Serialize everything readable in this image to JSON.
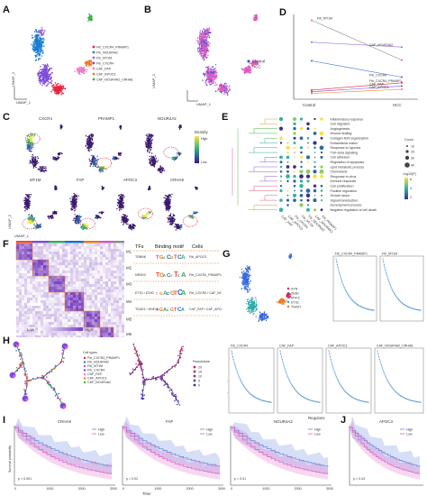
{
  "panels": {
    "A": "A",
    "B": "B",
    "C": "C",
    "D": "D",
    "E": "E",
    "F": "F",
    "G": "G",
    "H": "H",
    "I": "I",
    "J": "J"
  },
  "panelA": {
    "legend": [
      "Fib_CXCR4_PRAMP1",
      "Fib_NOUR4A2",
      "Fib_MT1M",
      "Fib_CXCR4",
      "CAF_FAP",
      "CAF_APOC3",
      "CAF_NOUR4A2_CRHA8"
    ],
    "colors": [
      "#e8203a",
      "#1a7fd1",
      "#a06bd3",
      "#7d4bd8",
      "#f07dc6",
      "#f47b20",
      "#3bb34a"
    ],
    "xaxis": "UMAP_1",
    "yaxis": "UMAP_2"
  },
  "panelB": {
    "legend": [
      "Control",
      "HCC"
    ],
    "colors": [
      "#3a5bd9",
      "#e05cc2"
    ],
    "xaxis": "UMAP_1",
    "yaxis": "UMAP_2"
  },
  "panelC": {
    "genes_top": [
      "CXCR4",
      "PRAMP1",
      "NOUR4A2"
    ],
    "genes_bottom": [
      "MT1M",
      "FAP",
      "APOC3",
      "CRHA8"
    ],
    "density_title": "Density",
    "density_high": "High",
    "density_low": "Low",
    "xaxis": "UMAP_1",
    "yaxis": "UMAP_2"
  },
  "panelD": {
    "x_labels": [
      "Control",
      "HCC"
    ],
    "lines": [
      {
        "label": "Fib_MT1M",
        "y0": 0.95,
        "y1": 0.46
      },
      {
        "label": "CAF_NOUR4A2",
        "y0": 0.68,
        "y1": 0.62
      },
      {
        "label": "Fib_CXCR4",
        "y0": 0.45,
        "y1": 0.25
      },
      {
        "label": "Fib_CXCR4_PRAMP1",
        "y0": 0.09,
        "y1": 0.18
      },
      {
        "label": "CAF_FAP",
        "y0": 0.07,
        "y1": 0.14
      },
      {
        "label": "CAF_APOC3",
        "y0": 0.05,
        "y1": 0.1
      }
    ]
  },
  "panelE": {
    "terms": [
      "Inflammatory response",
      "Cell migration",
      "Angiogenesis",
      "Wound healing",
      "Collagen fibril organization",
      "Extracellular matrix",
      "Response to hypoxia",
      "TGF-beta signaling",
      "Cell adhesion",
      "Regulation of apoptosis",
      "Lipid metabolic process",
      "Chemotaxis",
      "Response to virus",
      "Immune response",
      "Cell proliferation",
      "Positive regulation",
      "Growth factor",
      "Signal transduction",
      "Development process",
      "Negative regulation of cell death"
    ],
    "term_colors": [
      "#e7962a",
      "#e7962a",
      "#3fb34f",
      "#3fb34f",
      "#3fb34f",
      "#2aa7a7",
      "#2aa7a7",
      "#2aa7a7",
      "#8a5bd4",
      "#8a5bd4",
      "#8a5bd4",
      "#8a5bd4",
      "#8a5bd4",
      "#8a5bd4",
      "#d85b7d",
      "#d85b7d",
      "#d85b7d",
      "#d85b7d",
      "#e7962a",
      "#e7962a"
    ],
    "columns": [
      "CAF_FAP",
      "CAF_APOC3",
      "Fib_CXCR4",
      "Fib_MT1M",
      "Fib_NOUR4A2",
      "CAF_NOUR4A2",
      "Fib_PRAMP1"
    ],
    "size_legend_title": "Count",
    "size_legend": [
      "10",
      "20",
      "30",
      "40"
    ],
    "color_legend_title": "-log10(P)",
    "color_legend_values": [
      "6",
      "4",
      "2"
    ]
  },
  "panelF": {
    "header_tfs": "TFs",
    "header_motif": "Binding motif",
    "header_cells": "Cells",
    "modules": [
      "M1",
      "M2",
      "M3",
      "M4",
      "M5",
      "M6",
      "M7"
    ],
    "module_colors": [
      "#e84b3c",
      "#7a4bd8",
      "#3aaa55",
      "#1a6fd1",
      "#e07a20",
      "#c85ac2",
      "#8c8c8c"
    ],
    "rows": [
      {
        "tf": "TRBNK",
        "cells": "Fib_APOC3"
      },
      {
        "tf": "NR3H3",
        "cells": "Fib_CXCR4_PRAMP1 / Fib_MT1M"
      },
      {
        "tf": "ETS1 / EZH2",
        "cells": "Fib_CXCR4 / CAF_NOUR4A2_CRHA8"
      },
      {
        "tf": "TEAD1 / HNF4A",
        "cells": "CAF_FAP / CAF_APOC3"
      }
    ],
    "scale_low": "Low",
    "scale_high": "High"
  },
  "panelG": {
    "legend": [
      "SYN",
      "ZEB1",
      "MYF5",
      "ETS1",
      "TWIST"
    ],
    "legend_colors": [
      "#e8203a",
      "#3a6bd9",
      "#8a5bd4",
      "#2aa7a7",
      "#e07a20"
    ],
    "plot_titles": [
      "Fib_CXCR4_PRAMP1",
      "Fib_MT1M",
      "Fib_CXCR4",
      "CAF_FAP",
      "CAF_APOC3",
      "CAF_NOUR4A2_CRHA8",
      "Fib_NOUR4A2"
    ],
    "xaxis": "Regulons",
    "yaxis": "Specificity score"
  },
  "panelH": {
    "legend_title": "Cell types",
    "legend": [
      "Fib_CXCR4_PRAMP1",
      "Fib_NOUR4A2",
      "Fib_MT1M",
      "Fib_CXCR4",
      "CAF_FAP",
      "CAF_APOC3",
      "CAF_NOUR4A2"
    ],
    "legend_colors": [
      "#e8203a",
      "#1a7fd1",
      "#a06bd3",
      "#7d4bd8",
      "#f07dc6",
      "#f47b20",
      "#3bb34a"
    ],
    "pseudo_title": "Pseudotime",
    "pseudo_values": [
      "20",
      "15",
      "10",
      "5",
      "0"
    ]
  },
  "panelI": {
    "plots": [
      {
        "title": "CRHA8",
        "p": "p < 0.001"
      },
      {
        "title": "FAP",
        "p": "p = 0.02"
      },
      {
        "title": "NOUR4A2",
        "p": "p = 0.01"
      }
    ],
    "legend_high": "High",
    "legend_low": "Low",
    "xaxis": "Time",
    "yaxis": "Survival probability",
    "x_ticks": [
      "0",
      "1000",
      "2000",
      "3000"
    ]
  },
  "panelJ": {
    "title": "APOC3",
    "p": "p = 0.04",
    "legend_high": "High",
    "legend_low": "Low"
  },
  "colors": {
    "high": "#5b7fd9",
    "low": "#e05cc2"
  }
}
